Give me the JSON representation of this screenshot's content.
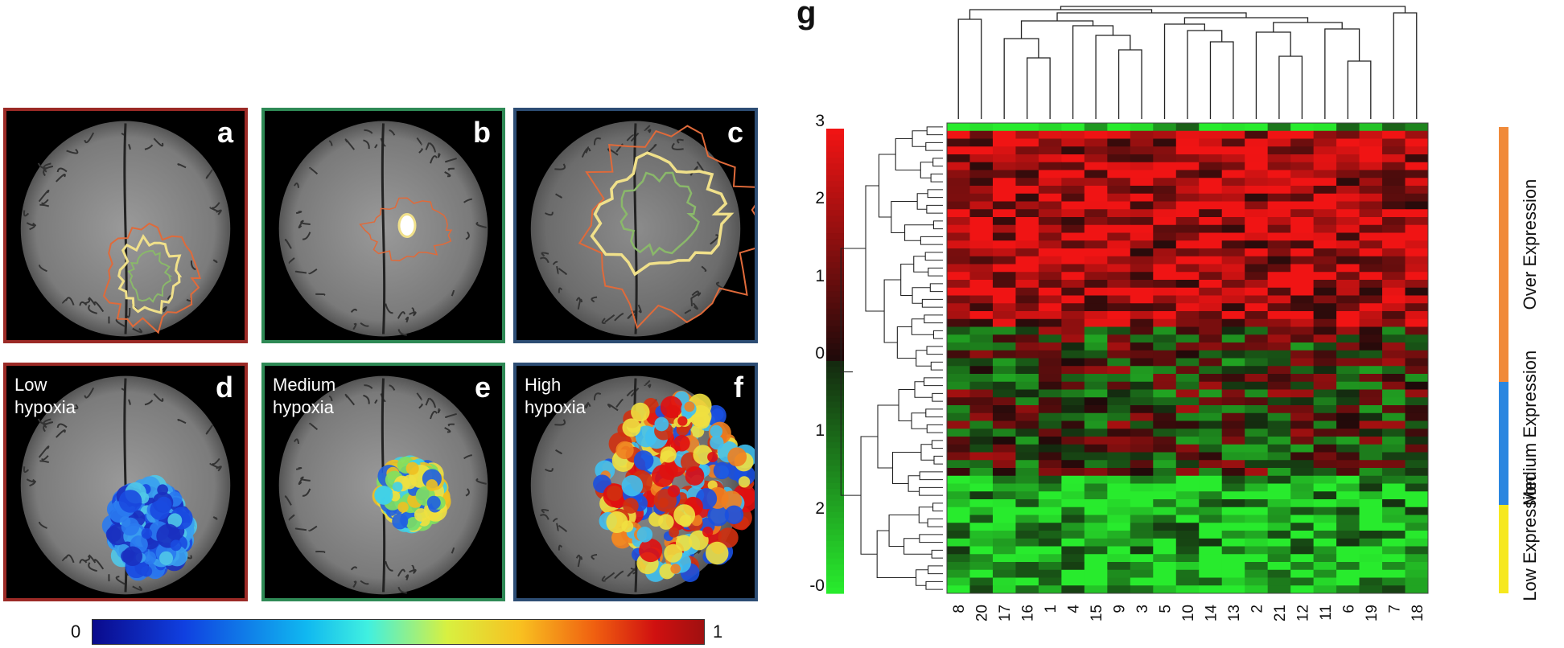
{
  "panels": {
    "a": {
      "letter": "a",
      "border": "#9b2a26"
    },
    "b": {
      "letter": "b",
      "border": "#2f8a56"
    },
    "c": {
      "letter": "c",
      "border": "#2d4d74"
    },
    "d": {
      "letter": "d",
      "border": "#9b2a26",
      "label": "Low\nhypoxia"
    },
    "e": {
      "letter": "e",
      "border": "#2f8a56",
      "label": "Medium\nhypoxia"
    },
    "f": {
      "letter": "f",
      "border": "#2d4d74",
      "label": "High\nhypoxia"
    }
  },
  "colorbar": {
    "min_label": "0",
    "max_label": "1"
  },
  "chart_data": {
    "type": "heatmap",
    "title": "g",
    "columns": [
      "8",
      "20",
      "17",
      "16",
      "1",
      "4",
      "15",
      "9",
      "3",
      "5",
      "10",
      "14",
      "13",
      "2",
      "21",
      "12",
      "11",
      "6",
      "19",
      "7",
      "18"
    ],
    "scale_ticks": [
      "3",
      "2",
      "1",
      "0",
      "1",
      "2",
      "-0"
    ],
    "groups": [
      {
        "name": "Over\nExpression",
        "color": "#f08a3a"
      },
      {
        "name": "Medium\nExpression",
        "color": "#2a86e0"
      },
      {
        "name": "Low\nExpression",
        "color": "#f6e81e"
      }
    ]
  }
}
